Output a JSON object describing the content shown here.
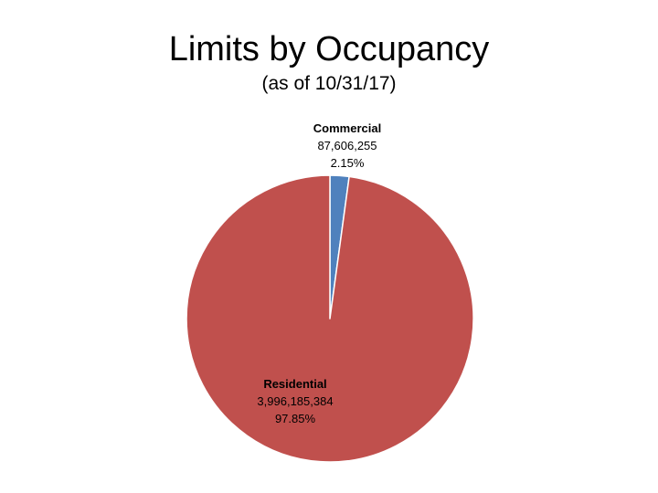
{
  "slide": {
    "title": "Limits by Occupancy",
    "subtitle": "(as of 10/31/17)"
  },
  "chart_data": {
    "type": "pie",
    "title": "Limits by Occupancy",
    "subtitle": "(as of 10/31/17)",
    "categories": [
      "Commercial",
      "Residential"
    ],
    "values": [
      87606255,
      3996185384
    ],
    "value_labels": [
      "87,606,255",
      "3,996,185,384"
    ],
    "percent_labels": [
      "2.15%",
      "97.85%"
    ],
    "colors": [
      "#4F81BD",
      "#C0504D"
    ],
    "start_angle_deg": 0,
    "direction": "clockwise",
    "legend": "none"
  }
}
